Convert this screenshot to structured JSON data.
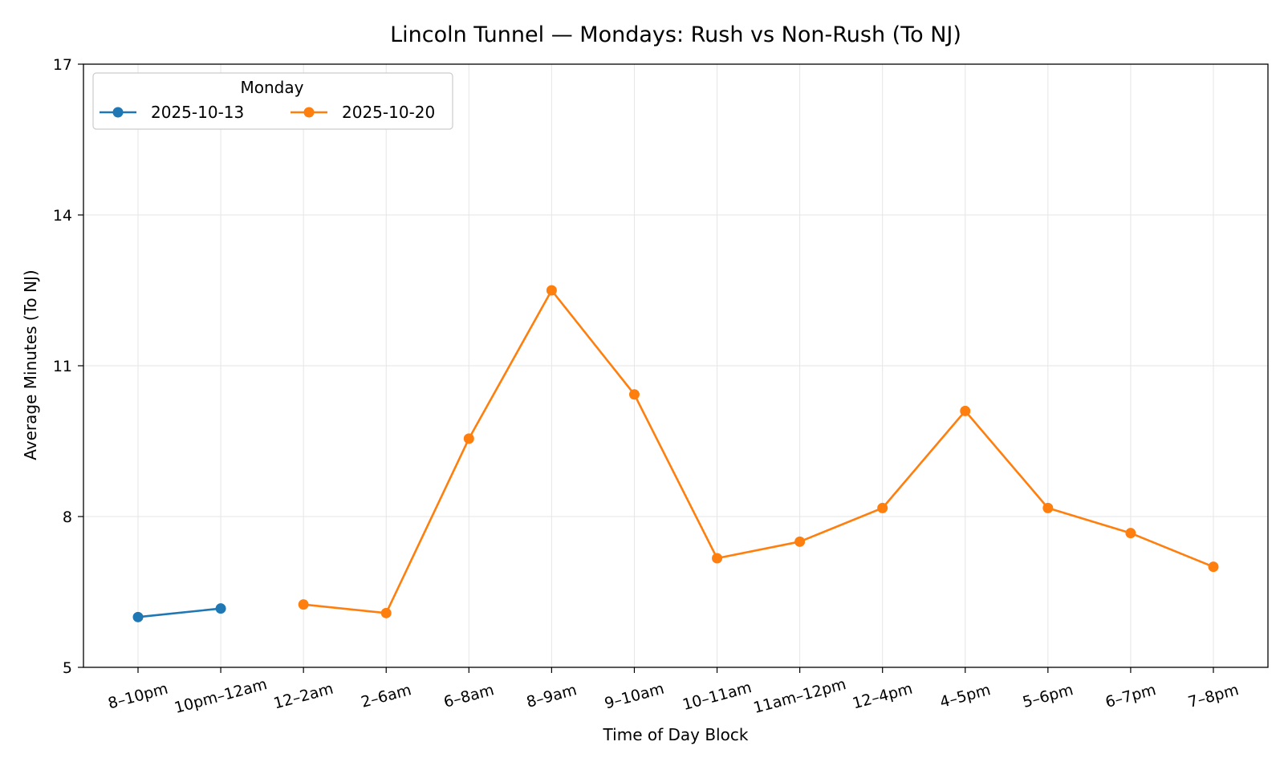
{
  "chart_data": {
    "type": "line",
    "title": "Lincoln Tunnel — Mondays: Rush vs Non-Rush (To NJ)",
    "xlabel": "Time of Day Block",
    "ylabel": "Average Minutes (To NJ)",
    "categories": [
      "8–10pm",
      "10pm–12am",
      "12–2am",
      "2–6am",
      "6–8am",
      "8–9am",
      "9–10am",
      "10–11am",
      "11am–12pm",
      "12–4pm",
      "4–5pm",
      "5–6pm",
      "6–7pm",
      "7–8pm"
    ],
    "yticks": [
      5,
      8,
      11,
      14,
      17
    ],
    "ylim": [
      5,
      17
    ],
    "grid": true,
    "legend": {
      "title": "Monday",
      "placement": "top-left"
    },
    "series": [
      {
        "name": "2025-10-13",
        "color": "#1f77b4",
        "values": [
          6.0,
          6.17,
          null,
          null,
          null,
          null,
          null,
          null,
          null,
          null,
          null,
          null,
          null,
          null
        ]
      },
      {
        "name": "2025-10-20",
        "color": "#ff7f0e",
        "values": [
          null,
          null,
          6.25,
          6.08,
          9.55,
          12.5,
          10.43,
          7.17,
          7.5,
          8.17,
          10.1,
          8.17,
          7.67,
          7.0
        ]
      }
    ]
  }
}
